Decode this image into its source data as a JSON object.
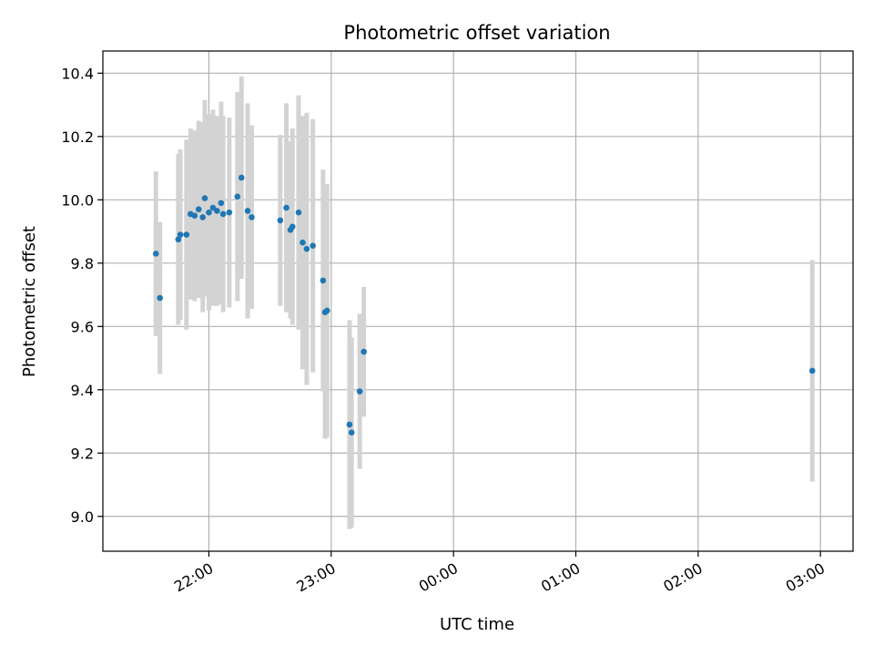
{
  "chart_data": {
    "type": "scatter",
    "title": "Photometric offset variation",
    "xlabel": "UTC time",
    "ylabel": "Photometric offset",
    "x_axis": "time",
    "x_tick_labels": [
      "22:00",
      "23:00",
      "00:00",
      "01:00",
      "02:00",
      "03:00"
    ],
    "x_ticks": [
      "22:00",
      "23:00",
      "24:00",
      "25:00",
      "26:00",
      "27:00"
    ],
    "xlim": [
      "21:08",
      "27:16"
    ],
    "y_ticks": [
      9.0,
      9.2,
      9.4,
      9.6,
      9.8,
      10.0,
      10.2,
      10.4
    ],
    "y_tick_labels": [
      "9.0",
      "9.2",
      "9.4",
      "9.6",
      "9.8",
      "10.0",
      "10.2",
      "10.4"
    ],
    "ylim": [
      8.89,
      10.47
    ],
    "grid": true,
    "marker_color": "#1f77b4",
    "errorbar_color": "#d3d3d3",
    "series": [
      {
        "points": [
          {
            "t": "21:34",
            "y": 9.83,
            "yerr": 0.26
          },
          {
            "t": "21:36",
            "y": 9.69,
            "yerr": 0.24
          },
          {
            "t": "21:45",
            "y": 9.875,
            "yerr": 0.27
          },
          {
            "t": "21:46",
            "y": 9.89,
            "yerr": 0.27
          },
          {
            "t": "21:49",
            "y": 9.89,
            "yerr": 0.3
          },
          {
            "t": "21:51",
            "y": 9.955,
            "yerr": 0.27
          },
          {
            "t": "21:53",
            "y": 9.95,
            "yerr": 0.27
          },
          {
            "t": "21:55",
            "y": 9.97,
            "yerr": 0.28
          },
          {
            "t": "21:57",
            "y": 9.945,
            "yerr": 0.3
          },
          {
            "t": "21:58",
            "y": 10.005,
            "yerr": 0.31
          },
          {
            "t": "22:00",
            "y": 9.96,
            "yerr": 0.31
          },
          {
            "t": "22:02",
            "y": 9.975,
            "yerr": 0.31
          },
          {
            "t": "22:04",
            "y": 9.965,
            "yerr": 0.3
          },
          {
            "t": "22:06",
            "y": 9.99,
            "yerr": 0.32
          },
          {
            "t": "22:07",
            "y": 9.955,
            "yerr": 0.31
          },
          {
            "t": "22:10",
            "y": 9.96,
            "yerr": 0.3
          },
          {
            "t": "22:14",
            "y": 10.01,
            "yerr": 0.33
          },
          {
            "t": "22:16",
            "y": 10.07,
            "yerr": 0.32
          },
          {
            "t": "22:19",
            "y": 9.965,
            "yerr": 0.34
          },
          {
            "t": "22:21",
            "y": 9.945,
            "yerr": 0.29
          },
          {
            "t": "22:35",
            "y": 9.935,
            "yerr": 0.27
          },
          {
            "t": "22:38",
            "y": 9.975,
            "yerr": 0.33
          },
          {
            "t": "22:40",
            "y": 9.905,
            "yerr": 0.28
          },
          {
            "t": "22:41",
            "y": 9.915,
            "yerr": 0.31
          },
          {
            "t": "22:44",
            "y": 9.96,
            "yerr": 0.37
          },
          {
            "t": "22:46",
            "y": 9.865,
            "yerr": 0.4
          },
          {
            "t": "22:48",
            "y": 9.845,
            "yerr": 0.43
          },
          {
            "t": "22:51",
            "y": 9.855,
            "yerr": 0.4
          },
          {
            "t": "22:56",
            "y": 9.745,
            "yerr": 0.35
          },
          {
            "t": "22:57",
            "y": 9.645,
            "yerr": 0.4
          },
          {
            "t": "22:58",
            "y": 9.65,
            "yerr": 0.4
          },
          {
            "t": "23:09",
            "y": 9.29,
            "yerr": 0.33
          },
          {
            "t": "23:10",
            "y": 9.265,
            "yerr": 0.3
          },
          {
            "t": "23:14",
            "y": 9.395,
            "yerr": 0.245
          },
          {
            "t": "23:16",
            "y": 9.52,
            "yerr": 0.205
          },
          {
            "t": "26:56",
            "y": 9.46,
            "yerr": 0.35
          }
        ]
      }
    ]
  }
}
